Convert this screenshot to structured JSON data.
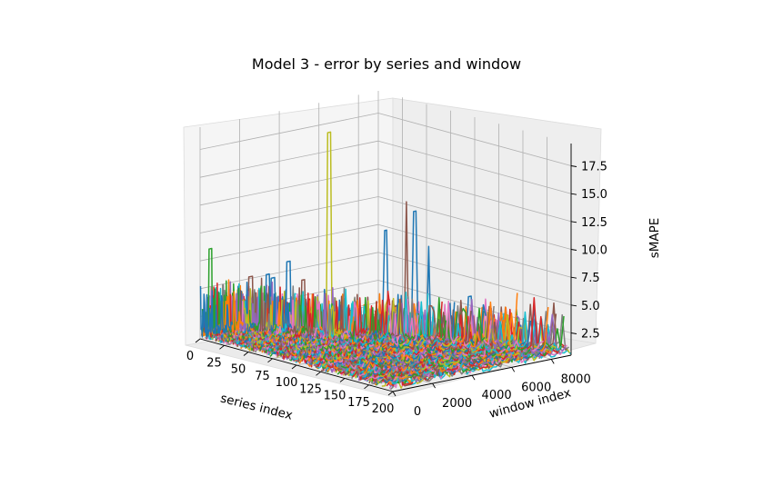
{
  "chart_data": {
    "type": "3d-line",
    "title": "Model 3 - error by series and window",
    "xlabel": "series index",
    "ylabel": "window index",
    "zlabel": "sMAPE",
    "xlim": [
      0,
      200
    ],
    "ylim": [
      0,
      9000
    ],
    "zlim": [
      0.5,
      19.5
    ],
    "x_ticks": [
      "0",
      "25",
      "50",
      "75",
      "100",
      "125",
      "150",
      "175",
      "200"
    ],
    "y_ticks": [
      "0",
      "2000",
      "4000",
      "6000",
      "8000"
    ],
    "z_ticks": [
      "2.5",
      "5.0",
      "7.5",
      "10.0",
      "12.5",
      "15.0",
      "17.5"
    ],
    "grid": true,
    "series_count": 200,
    "baseline_smape": 1.0,
    "notable_peaks": [
      {
        "series": 2,
        "window": 400,
        "smape": 8.5
      },
      {
        "series": 15,
        "window": 1800,
        "smape": 5.8
      },
      {
        "series": 20,
        "window": 2400,
        "smape": 5.9
      },
      {
        "series": 30,
        "window": 2200,
        "smape": 5.9
      },
      {
        "series": 40,
        "window": 2500,
        "smape": 7.5
      },
      {
        "series": 55,
        "window": 2500,
        "smape": 6.2
      },
      {
        "series": 68,
        "window": 3200,
        "smape": 19.5
      },
      {
        "series": 100,
        "window": 4500,
        "smape": 11.0
      },
      {
        "series": 115,
        "window": 4800,
        "smape": 13.8
      },
      {
        "series": 120,
        "window": 5000,
        "smape": 13.0
      },
      {
        "series": 130,
        "window": 5200,
        "smape": 10.0
      },
      {
        "series": 160,
        "window": 5800,
        "smape": 6.0
      },
      {
        "series": 185,
        "window": 6200,
        "smape": 5.5
      }
    ],
    "colors": [
      "#1f77b4",
      "#ff7f0e",
      "#2ca02c",
      "#d62728",
      "#9467bd",
      "#8c564b",
      "#e377c2",
      "#7f7f7f",
      "#bcbd22",
      "#17becf"
    ]
  }
}
